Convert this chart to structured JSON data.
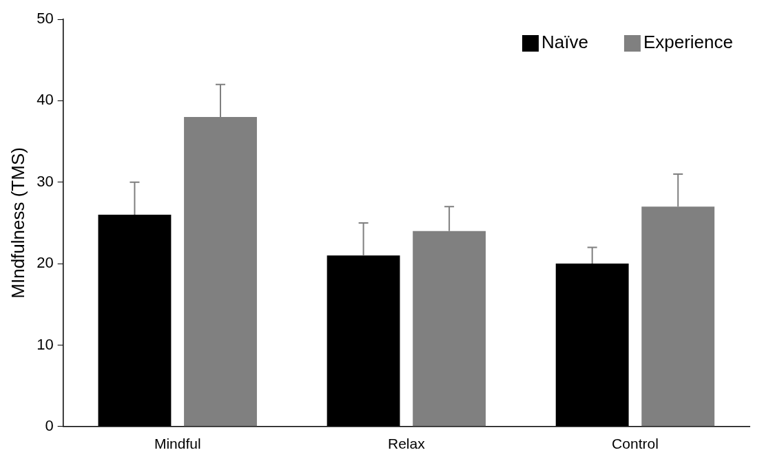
{
  "chart_data": {
    "type": "bar",
    "ylabel": "MIndfulness (TMS)",
    "categories": [
      "Mindful",
      "Relax",
      "Control"
    ],
    "series": [
      {
        "name": "Naïve",
        "color": "#000000",
        "values": [
          26,
          21,
          20
        ],
        "errors": [
          [
            26,
            30
          ],
          [
            21,
            25
          ],
          [
            20,
            22
          ]
        ]
      },
      {
        "name": "Experience",
        "color": "#808080",
        "values": [
          38,
          24,
          27
        ],
        "errors": [
          [
            38,
            42
          ],
          [
            24,
            27
          ],
          [
            27,
            31
          ]
        ]
      }
    ],
    "ylim": [
      0,
      50
    ],
    "yticks": [
      0,
      10,
      20,
      30,
      40,
      50
    ],
    "grid": false,
    "legend": "top right"
  }
}
